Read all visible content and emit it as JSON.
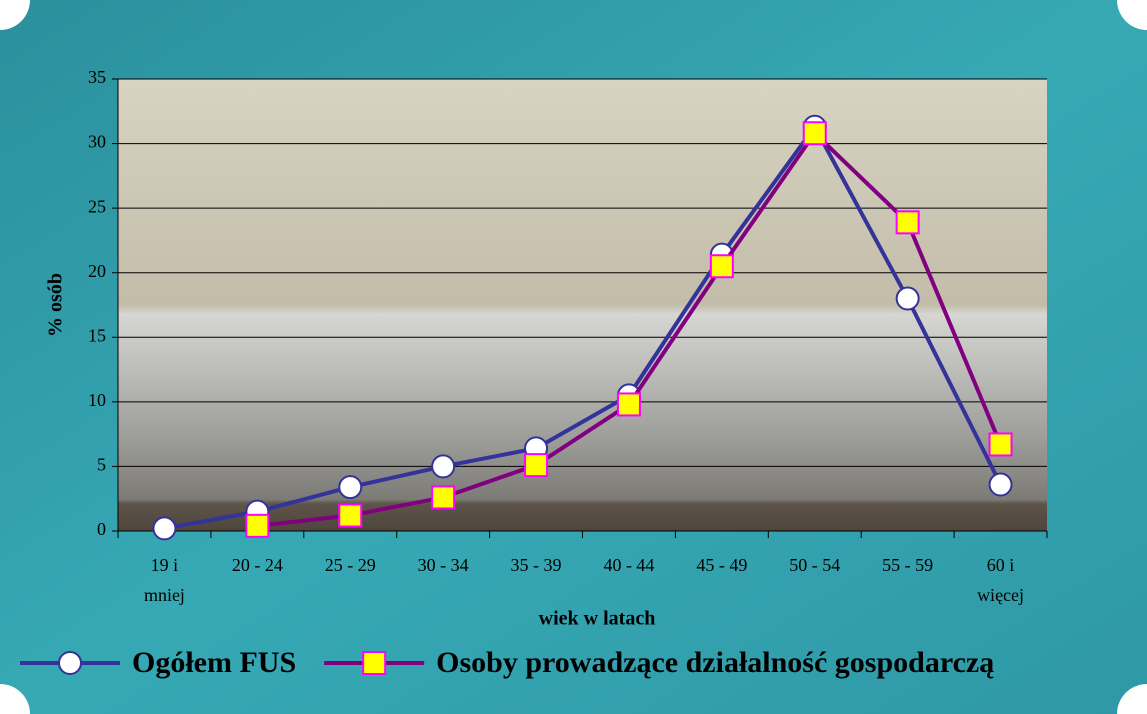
{
  "chart_data": {
    "type": "line",
    "xlabel": "wiek w latach",
    "ylabel": "% osób",
    "categories": [
      "19 i mniej",
      "20 - 24",
      "25 - 29",
      "30 - 34",
      "35 - 39",
      "40 - 44",
      "45 - 49",
      "50 - 54",
      "55 - 59",
      "60 i więcej"
    ],
    "series": [
      {
        "name": "Ogółem FUS",
        "color": "#33339a",
        "marker": "circle",
        "marker_fill": "#ffffff",
        "marker_stroke": "#33339a",
        "values": [
          0.2,
          1.5,
          3.4,
          5.0,
          6.4,
          10.5,
          21.4,
          31.3,
          18.0,
          3.6
        ]
      },
      {
        "name": "Osoby prowadzące działalność gospodarczą",
        "color": "#800080",
        "marker": "square",
        "marker_fill": "#ffff00",
        "marker_stroke": "#ff00ff",
        "values": [
          null,
          0.4,
          1.2,
          2.6,
          5.1,
          9.8,
          20.5,
          30.8,
          23.9,
          6.7
        ]
      }
    ],
    "ylim": [
      0,
      35
    ],
    "yticks": [
      0,
      5,
      10,
      15,
      20,
      25,
      30,
      35
    ],
    "grid": true,
    "legend": "bottom"
  }
}
